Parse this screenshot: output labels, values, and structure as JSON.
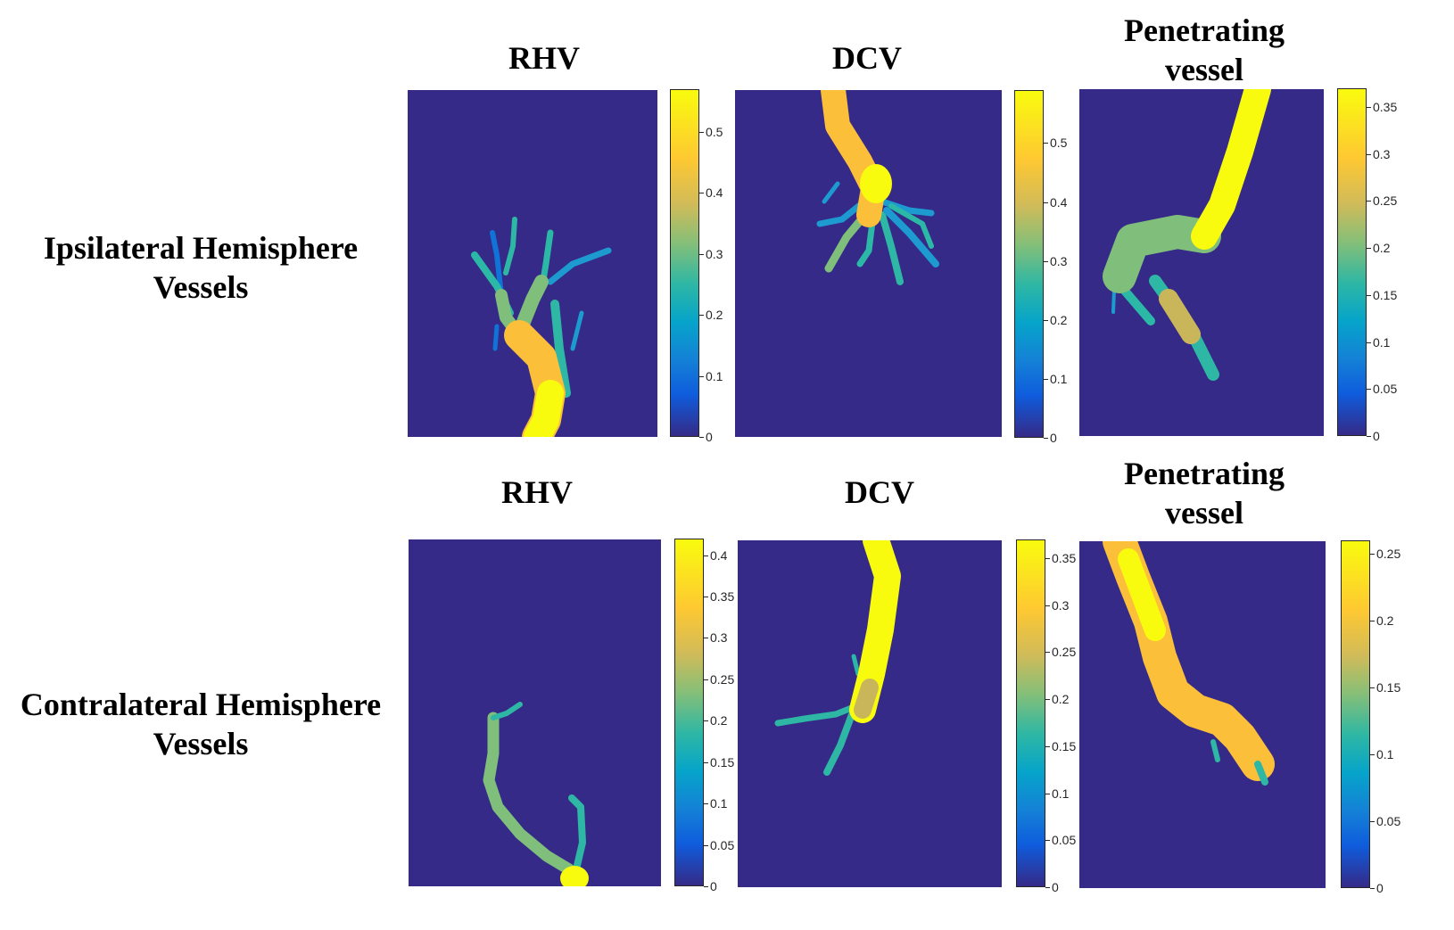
{
  "rows": [
    {
      "label_line1": "Ipsilateral Hemisphere",
      "label_line2": "Vessels",
      "panels": [
        {
          "title_line1": "RHV",
          "title_line2": "",
          "colorbar_ticks": [
            "0",
            "0.1",
            "0.2",
            "0.3",
            "0.4",
            "0.5"
          ],
          "colorbar_max": 0.57
        },
        {
          "title_line1": "DCV",
          "title_line2": "",
          "colorbar_ticks": [
            "0",
            "0.1",
            "0.2",
            "0.3",
            "0.4",
            "0.5"
          ],
          "colorbar_max": 0.59
        },
        {
          "title_line1": "Penetrating",
          "title_line2": "vessel",
          "colorbar_ticks": [
            "0",
            "0.05",
            "0.1",
            "0.15",
            "0.2",
            "0.25",
            "0.3",
            "0.35"
          ],
          "colorbar_max": 0.37
        }
      ]
    },
    {
      "label_line1": "Contralateral Hemisphere",
      "label_line2": "Vessels",
      "panels": [
        {
          "title_line1": "RHV",
          "title_line2": "",
          "colorbar_ticks": [
            "0",
            "0.05",
            "0.1",
            "0.15",
            "0.2",
            "0.25",
            "0.3",
            "0.35",
            "0.4"
          ],
          "colorbar_max": 0.42
        },
        {
          "title_line1": "DCV",
          "title_line2": "",
          "colorbar_ticks": [
            "0",
            "0.05",
            "0.1",
            "0.15",
            "0.2",
            "0.25",
            "0.3",
            "0.35"
          ],
          "colorbar_max": 0.37
        },
        {
          "title_line1": "Penetrating",
          "title_line2": "vessel",
          "colorbar_ticks": [
            "0",
            "0.05",
            "0.1",
            "0.15",
            "0.2",
            "0.25"
          ],
          "colorbar_max": 0.26
        }
      ]
    }
  ],
  "colors": {
    "background": "#352a87",
    "yellow": "#f9fb0e",
    "orange": "#fbbf3a",
    "green": "#7fbf7b",
    "teal": "#2cb8a6",
    "blue": "#0f73d8"
  }
}
